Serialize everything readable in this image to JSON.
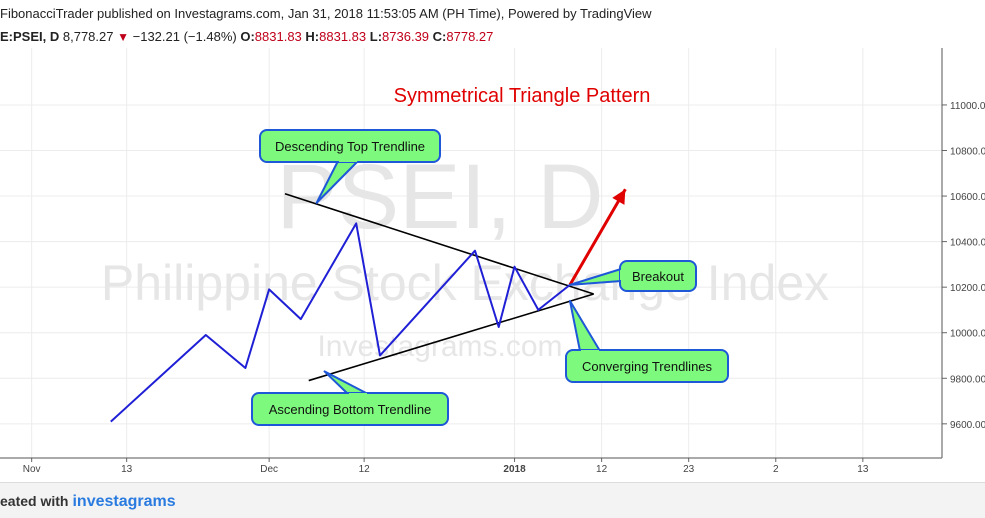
{
  "header": {
    "published_line": "FibonacciTrader published on Investagrams.com, Jan 31, 2018 11:53:05 AM (PH Time), Powered by TradingView",
    "symbol": "E:PSEI, D",
    "price": "8,778.27",
    "change": "−132.21 (−1.48%)",
    "o_label": "O:",
    "o_value": "8831.83",
    "h_label": "H:",
    "h_value": "8831.83",
    "l_label": "L:",
    "l_value": "8736.39",
    "c_label": "C:",
    "c_value": "8778.27"
  },
  "footer": {
    "created_with": "eated with",
    "brand": "investagrams"
  },
  "colors": {
    "price_line": "#1f1fd6",
    "trendline": "#000000",
    "breakout_arrow": "#e00000",
    "callout_fill": "#7dfa7d",
    "callout_stroke": "#1e57d8",
    "title": "#e00000",
    "watermark": "#e6e6e6"
  },
  "chart_data": {
    "type": "line",
    "title": "Symmetrical Triangle Pattern",
    "watermark": {
      "main": "PSEI, D",
      "sub": "Philippine Stock Exchange Index",
      "site": "Investagrams.com"
    },
    "ylim": [
      9450,
      11250
    ],
    "y_ticks": [
      9600,
      9800,
      10000,
      10200,
      10400,
      10600,
      10800,
      11000
    ],
    "y_tick_labels": [
      "9600.00",
      "9800.00",
      "10000.00",
      "10200.00",
      "10400.00",
      "10600.00",
      "10800.00",
      "11000.00"
    ],
    "x_ticks": [
      {
        "label": "Nov",
        "day": 0,
        "bold": false
      },
      {
        "label": "13",
        "day": 12,
        "bold": false
      },
      {
        "label": "Dec",
        "day": 30,
        "bold": false
      },
      {
        "label": "12",
        "day": 42,
        "bold": false
      },
      {
        "label": "2018",
        "day": 61,
        "bold": true
      },
      {
        "label": "12",
        "day": 72,
        "bold": false
      },
      {
        "label": "23",
        "day": 83,
        "bold": false
      },
      {
        "label": "2",
        "day": 94,
        "bold": false
      },
      {
        "label": "13",
        "day": 105,
        "bold": false
      }
    ],
    "series": [
      {
        "points": [
          [
            10,
            9610
          ],
          [
            22,
            9990
          ],
          [
            27,
            9845
          ],
          [
            30,
            10190
          ],
          [
            34,
            10060
          ],
          [
            41,
            10480
          ],
          [
            44,
            9900
          ],
          [
            56,
            10360
          ],
          [
            59,
            10025
          ],
          [
            61,
            10290
          ],
          [
            64,
            10100
          ],
          [
            68,
            10210
          ]
        ]
      }
    ],
    "trendlines": [
      {
        "name": "Descending Top Trendline",
        "from": [
          32,
          10610
        ],
        "to": [
          71,
          10170
        ]
      },
      {
        "name": "Ascending Bottom Trendline",
        "from": [
          35,
          9790
        ],
        "to": [
          71,
          10170
        ]
      }
    ],
    "breakout_arrow": {
      "from": [
        68,
        10210
      ],
      "to": [
        75,
        10630
      ]
    },
    "annotations": [
      {
        "text": "Descending Top Trendline",
        "anchor": [
          36,
          10570
        ]
      },
      {
        "text": "Ascending Bottom Trendline",
        "anchor": [
          37,
          9830
        ]
      },
      {
        "text": "Breakout",
        "anchor": [
          68,
          10210
        ]
      },
      {
        "text": "Converging Trendlines",
        "anchor": [
          68,
          10140
        ]
      }
    ]
  }
}
